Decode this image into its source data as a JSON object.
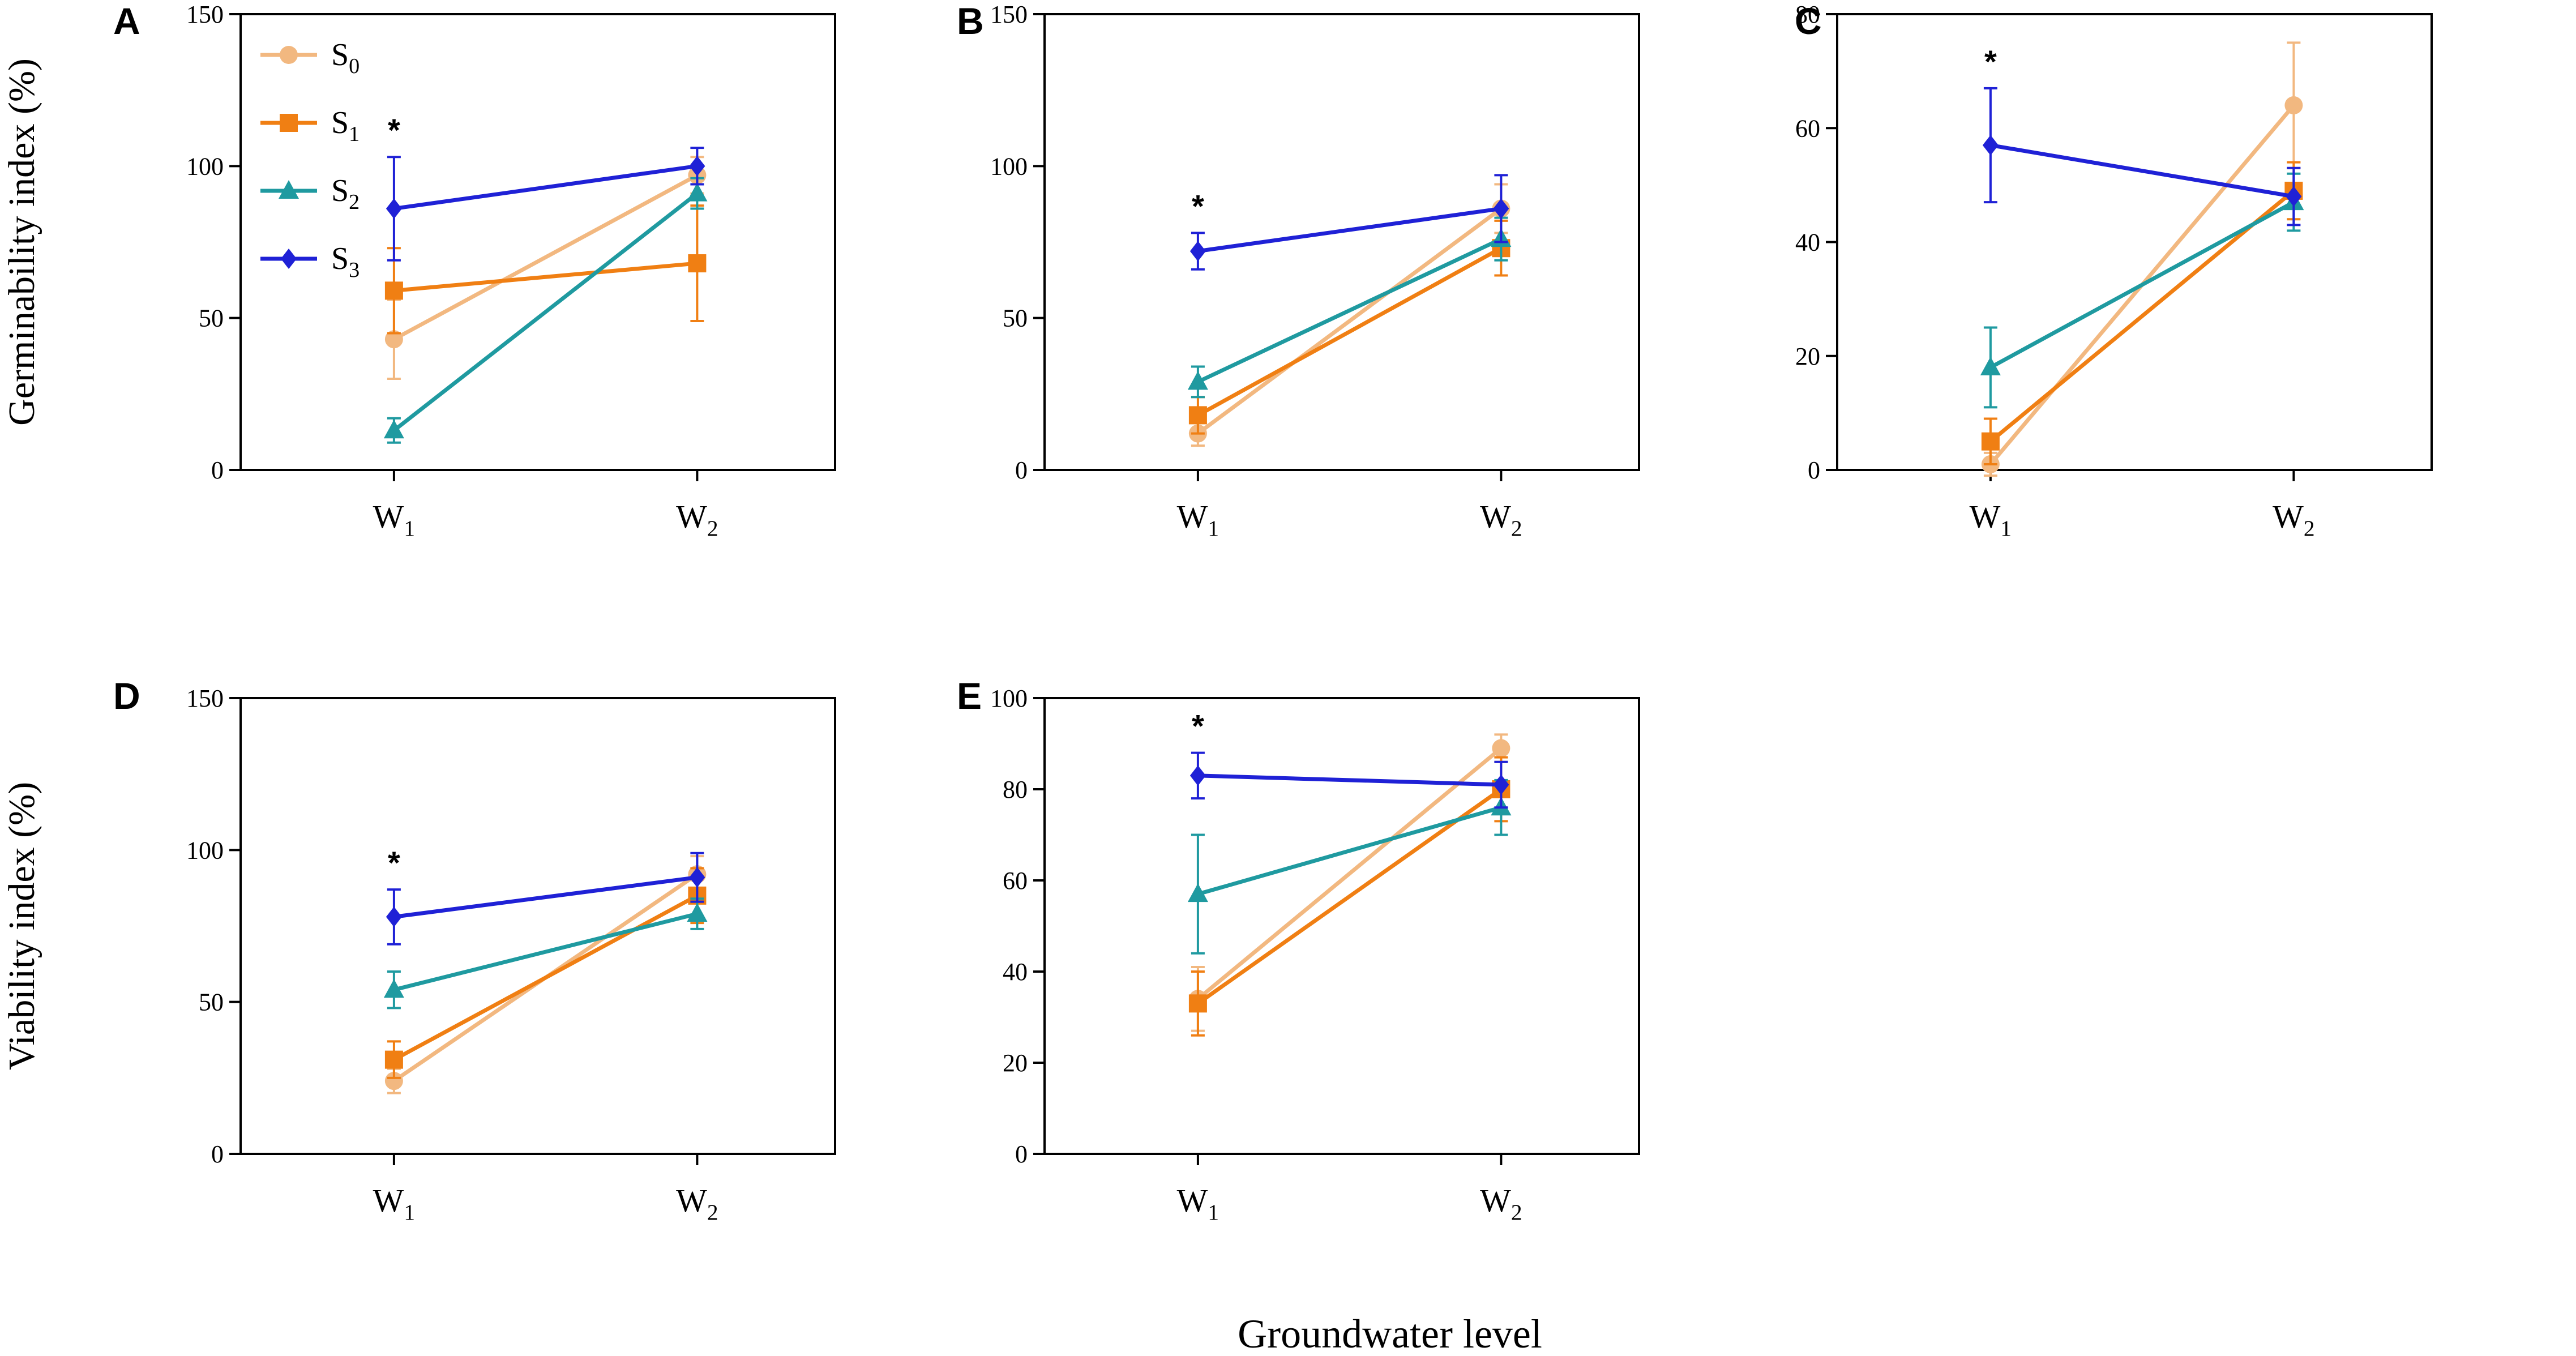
{
  "chart_data": {
    "type": "line",
    "xlabel": "Groundwater level",
    "categories": [
      "W1",
      "W2"
    ],
    "colors": {
      "S0": "#F2B880",
      "S1": "#F07F13",
      "S2": "#1F9AA0",
      "S3": "#1F21D6"
    },
    "legend": [
      {
        "key": "S0",
        "base": "S",
        "sub": "0"
      },
      {
        "key": "S1",
        "base": "S",
        "sub": "1"
      },
      {
        "key": "S2",
        "base": "S",
        "sub": "2"
      },
      {
        "key": "S3",
        "base": "S",
        "sub": "3"
      }
    ],
    "panels": [
      {
        "id": "A",
        "ylabel": "Germinability index (%)",
        "ylim": [
          0,
          150
        ],
        "yticks": [
          0,
          50,
          100,
          150
        ],
        "star": "*",
        "series": [
          {
            "name": "S0",
            "values": [
              43,
              97
            ],
            "errors": [
              13,
              6
            ]
          },
          {
            "name": "S1",
            "values": [
              59,
              68
            ],
            "errors": [
              14,
              19
            ]
          },
          {
            "name": "S2",
            "values": [
              13,
              91
            ],
            "errors": [
              4,
              5
            ]
          },
          {
            "name": "S3",
            "values": [
              86,
              100
            ],
            "errors": [
              17,
              6
            ]
          }
        ]
      },
      {
        "id": "B",
        "ylabel": "",
        "ylim": [
          0,
          150
        ],
        "yticks": [
          0,
          50,
          100,
          150
        ],
        "star": "*",
        "series": [
          {
            "name": "S0",
            "values": [
              12,
              86
            ],
            "errors": [
              4,
              8
            ]
          },
          {
            "name": "S1",
            "values": [
              18,
              73
            ],
            "errors": [
              6,
              9
            ]
          },
          {
            "name": "S2",
            "values": [
              29,
              76
            ],
            "errors": [
              5,
              7
            ]
          },
          {
            "name": "S3",
            "values": [
              72,
              86
            ],
            "errors": [
              6,
              11
            ]
          }
        ]
      },
      {
        "id": "C",
        "ylabel": "",
        "ylim": [
          0,
          80
        ],
        "yticks": [
          0,
          20,
          40,
          60,
          80
        ],
        "star": "*",
        "series": [
          {
            "name": "S0",
            "values": [
              1,
              64
            ],
            "errors": [
              2,
              11
            ]
          },
          {
            "name": "S1",
            "values": [
              5,
              49
            ],
            "errors": [
              4,
              5
            ]
          },
          {
            "name": "S2",
            "values": [
              18,
              47
            ],
            "errors": [
              7,
              5
            ]
          },
          {
            "name": "S3",
            "values": [
              57,
              48
            ],
            "errors": [
              10,
              5
            ]
          }
        ]
      },
      {
        "id": "D",
        "ylabel": "Viability index (%)",
        "ylim": [
          0,
          150
        ],
        "yticks": [
          0,
          50,
          100,
          150
        ],
        "star": "*",
        "series": [
          {
            "name": "S0",
            "values": [
              24,
              92
            ],
            "errors": [
              4,
              6
            ]
          },
          {
            "name": "S1",
            "values": [
              31,
              85
            ],
            "errors": [
              6,
              9
            ]
          },
          {
            "name": "S2",
            "values": [
              54,
              79
            ],
            "errors": [
              6,
              5
            ]
          },
          {
            "name": "S3",
            "values": [
              78,
              91
            ],
            "errors": [
              9,
              8
            ]
          }
        ]
      },
      {
        "id": "E",
        "ylabel": "",
        "ylim": [
          0,
          100
        ],
        "yticks": [
          0,
          20,
          40,
          60,
          80,
          100
        ],
        "star": "*",
        "series": [
          {
            "name": "S0",
            "values": [
              34,
              89
            ],
            "errors": [
              7,
              3
            ]
          },
          {
            "name": "S1",
            "values": [
              33,
              80
            ],
            "errors": [
              7,
              7
            ]
          },
          {
            "name": "S2",
            "values": [
              57,
              76
            ],
            "errors": [
              13,
              6
            ]
          },
          {
            "name": "S3",
            "values": [
              83,
              81
            ],
            "errors": [
              5,
              5
            ]
          }
        ]
      }
    ]
  }
}
